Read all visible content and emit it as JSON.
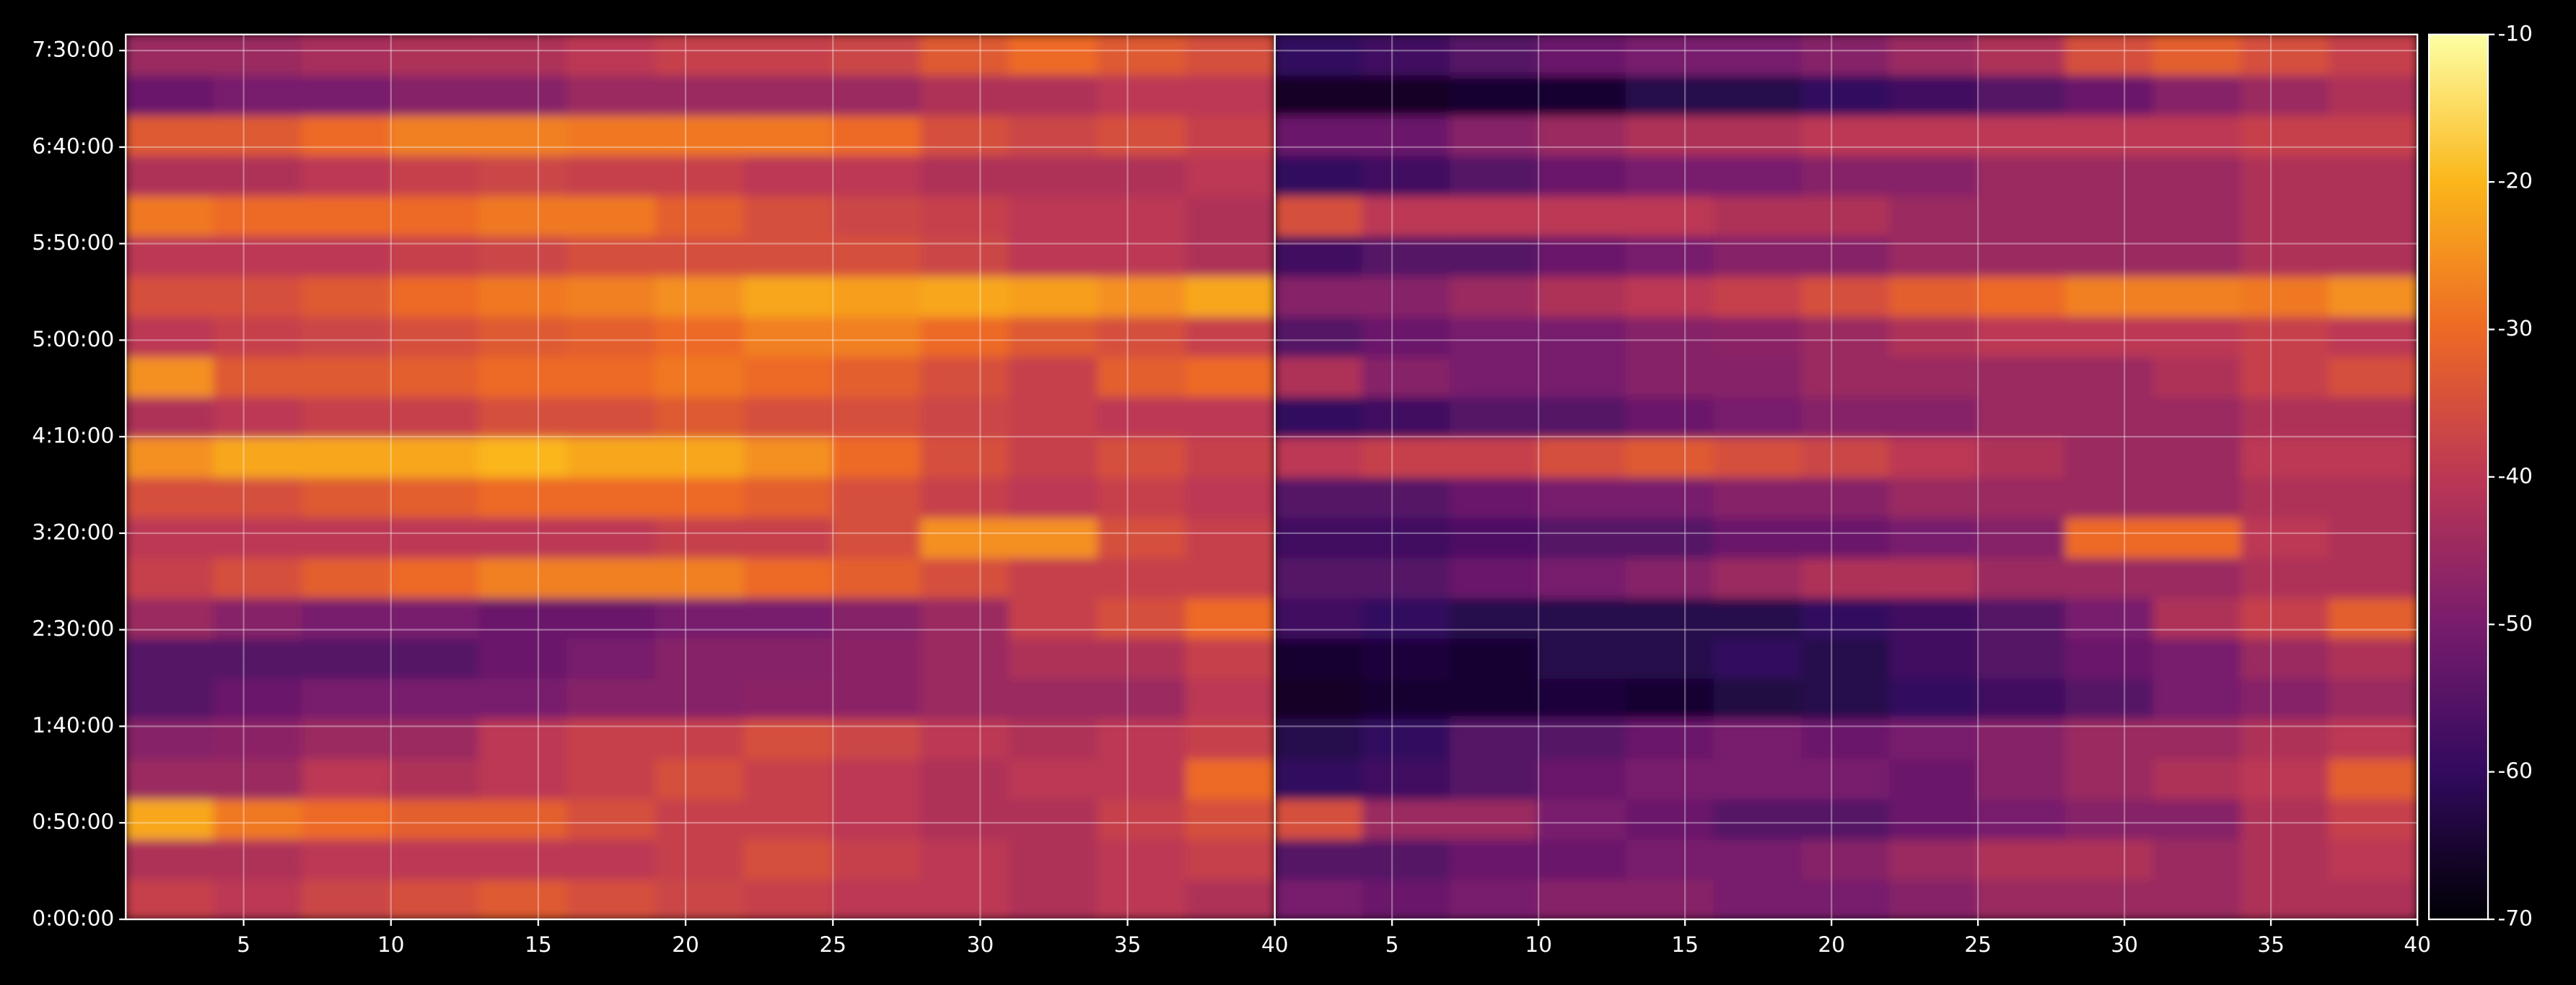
{
  "chart_data": [
    {
      "type": "heatmap",
      "x_bins": [
        1,
        4,
        7,
        10,
        13,
        16,
        19,
        22,
        25,
        28,
        31,
        34,
        37,
        40
      ],
      "y_bins": [
        0,
        1250,
        2500,
        3750,
        5000,
        6250,
        7500,
        8750,
        10000,
        11250,
        12500,
        13750,
        15000,
        16250,
        17500,
        18750,
        20000,
        21250,
        22500,
        23750,
        25000,
        26250,
        27500
      ],
      "xlim": [
        1,
        40
      ],
      "xticks": [
        5,
        10,
        15,
        20,
        25,
        30,
        35,
        40
      ],
      "ylim": [
        0,
        27500
      ],
      "yticks": [
        {
          "value": 0,
          "label": "0:00:00"
        },
        {
          "value": 3000,
          "label": "0:50:00"
        },
        {
          "value": 6000,
          "label": "1:40:00"
        },
        {
          "value": 9000,
          "label": "2:30:00"
        },
        {
          "value": 12000,
          "label": "3:20:00"
        },
        {
          "value": 15000,
          "label": "4:10:00"
        },
        {
          "value": 18000,
          "label": "5:00:00"
        },
        {
          "value": 21000,
          "label": "5:50:00"
        },
        {
          "value": 24000,
          "label": "6:40:00"
        },
        {
          "value": 27000,
          "label": "7:30:00"
        }
      ],
      "grid": true,
      "values": [
        [
          -38,
          -40,
          -37,
          -35,
          -33,
          -35,
          -37,
          -38,
          -40,
          -40,
          -42,
          -40,
          -42
        ],
        [
          -42,
          -42,
          -40,
          -40,
          -40,
          -40,
          -38,
          -35,
          -38,
          -40,
          -42,
          -40,
          -38
        ],
        [
          -22,
          -28,
          -30,
          -32,
          -32,
          -35,
          -38,
          -38,
          -40,
          -42,
          -42,
          -38,
          -35
        ],
        [
          -45,
          -45,
          -40,
          -42,
          -40,
          -38,
          -35,
          -38,
          -40,
          -42,
          -40,
          -40,
          -30
        ],
        [
          -48,
          -47,
          -45,
          -45,
          -40,
          -38,
          -38,
          -35,
          -37,
          -40,
          -42,
          -40,
          -38
        ],
        [
          -55,
          -52,
          -50,
          -50,
          -50,
          -48,
          -48,
          -47,
          -47,
          -45,
          -45,
          -45,
          -40
        ],
        [
          -55,
          -55,
          -55,
          -55,
          -52,
          -50,
          -48,
          -48,
          -47,
          -45,
          -42,
          -42,
          -38
        ],
        [
          -45,
          -48,
          -50,
          -50,
          -52,
          -52,
          -50,
          -50,
          -48,
          -45,
          -38,
          -35,
          -30
        ],
        [
          -38,
          -35,
          -32,
          -30,
          -27,
          -27,
          -27,
          -30,
          -32,
          -35,
          -38,
          -38,
          -38
        ],
        [
          -40,
          -40,
          -40,
          -40,
          -40,
          -40,
          -38,
          -38,
          -35,
          -25,
          -25,
          -35,
          -38
        ],
        [
          -35,
          -35,
          -33,
          -32,
          -30,
          -30,
          -30,
          -32,
          -35,
          -38,
          -40,
          -38,
          -40
        ],
        [
          -25,
          -22,
          -22,
          -22,
          -20,
          -22,
          -22,
          -25,
          -30,
          -35,
          -38,
          -35,
          -38
        ],
        [
          -42,
          -40,
          -38,
          -38,
          -35,
          -35,
          -33,
          -35,
          -35,
          -37,
          -38,
          -40,
          -40
        ],
        [
          -25,
          -33,
          -33,
          -32,
          -30,
          -30,
          -28,
          -30,
          -32,
          -35,
          -38,
          -32,
          -30
        ],
        [
          -40,
          -38,
          -37,
          -35,
          -33,
          -32,
          -30,
          -27,
          -27,
          -30,
          -33,
          -35,
          -38
        ],
        [
          -35,
          -35,
          -33,
          -30,
          -28,
          -27,
          -25,
          -22,
          -23,
          -22,
          -23,
          -25,
          -22
        ],
        [
          -40,
          -40,
          -40,
          -38,
          -37,
          -35,
          -35,
          -35,
          -35,
          -37,
          -40,
          -40,
          -42
        ],
        [
          -28,
          -30,
          -30,
          -30,
          -28,
          -28,
          -32,
          -35,
          -37,
          -38,
          -40,
          -40,
          -42
        ],
        [
          -42,
          -42,
          -40,
          -38,
          -37,
          -38,
          -38,
          -40,
          -40,
          -42,
          -42,
          -42,
          -40
        ],
        [
          -33,
          -33,
          -30,
          -27,
          -27,
          -28,
          -28,
          -28,
          -30,
          -35,
          -37,
          -35,
          -38
        ],
        [
          -52,
          -50,
          -50,
          -48,
          -48,
          -45,
          -45,
          -45,
          -45,
          -42,
          -42,
          -40,
          -40
        ],
        [
          -45,
          -45,
          -43,
          -42,
          -42,
          -40,
          -38,
          -38,
          -37,
          -33,
          -30,
          -33,
          -35
        ]
      ]
    },
    {
      "type": "heatmap",
      "x_bins": [
        1,
        4,
        7,
        10,
        13,
        16,
        19,
        22,
        25,
        28,
        31,
        34,
        37,
        40
      ],
      "y_bins": [
        0,
        1250,
        2500,
        3750,
        5000,
        6250,
        7500,
        8750,
        10000,
        11250,
        12500,
        13750,
        15000,
        16250,
        17500,
        18750,
        20000,
        21250,
        22500,
        23750,
        25000,
        26250,
        27500
      ],
      "xlim": [
        1,
        40
      ],
      "xticks": [
        5,
        10,
        15,
        20,
        25,
        30,
        35,
        40
      ],
      "ylim": [
        0,
        27500
      ],
      "grid": true,
      "values": [
        [
          -50,
          -52,
          -50,
          -48,
          -48,
          -50,
          -50,
          -48,
          -45,
          -45,
          -45,
          -42,
          -42
        ],
        [
          -55,
          -55,
          -52,
          -52,
          -50,
          -50,
          -48,
          -45,
          -42,
          -42,
          -45,
          -42,
          -40
        ],
        [
          -35,
          -45,
          -45,
          -50,
          -52,
          -55,
          -55,
          -52,
          -50,
          -48,
          -48,
          -42,
          -38
        ],
        [
          -60,
          -58,
          -55,
          -52,
          -50,
          -50,
          -50,
          -52,
          -48,
          -45,
          -42,
          -40,
          -32
        ],
        [
          -62,
          -60,
          -55,
          -55,
          -52,
          -50,
          -52,
          -50,
          -48,
          -45,
          -45,
          -42,
          -40
        ],
        [
          -66,
          -65,
          -65,
          -64,
          -65,
          -63,
          -62,
          -60,
          -58,
          -55,
          -50,
          -48,
          -45
        ],
        [
          -65,
          -64,
          -65,
          -62,
          -62,
          -60,
          -62,
          -58,
          -55,
          -52,
          -50,
          -45,
          -42
        ],
        [
          -58,
          -60,
          -62,
          -62,
          -62,
          -62,
          -60,
          -58,
          -55,
          -50,
          -42,
          -38,
          -32
        ],
        [
          -55,
          -55,
          -52,
          -50,
          -48,
          -45,
          -42,
          -42,
          -45,
          -45,
          -45,
          -42,
          -42
        ],
        [
          -58,
          -58,
          -56,
          -55,
          -55,
          -52,
          -52,
          -50,
          -48,
          -30,
          -30,
          -40,
          -42
        ],
        [
          -55,
          -55,
          -52,
          -50,
          -50,
          -48,
          -48,
          -45,
          -45,
          -45,
          -45,
          -42,
          -42
        ],
        [
          -40,
          -38,
          -38,
          -35,
          -33,
          -35,
          -37,
          -40,
          -42,
          -45,
          -45,
          -40,
          -40
        ],
        [
          -60,
          -58,
          -55,
          -55,
          -52,
          -50,
          -48,
          -48,
          -45,
          -45,
          -45,
          -42,
          -42
        ],
        [
          -42,
          -48,
          -50,
          -50,
          -48,
          -48,
          -45,
          -45,
          -45,
          -45,
          -42,
          -38,
          -35
        ],
        [
          -55,
          -52,
          -50,
          -50,
          -48,
          -47,
          -45,
          -42,
          -40,
          -40,
          -40,
          -38,
          -40
        ],
        [
          -48,
          -48,
          -45,
          -42,
          -40,
          -38,
          -35,
          -32,
          -30,
          -27,
          -27,
          -28,
          -25
        ],
        [
          -58,
          -55,
          -55,
          -52,
          -50,
          -48,
          -48,
          -45,
          -45,
          -45,
          -45,
          -42,
          -42
        ],
        [
          -35,
          -40,
          -40,
          -40,
          -40,
          -42,
          -42,
          -45,
          -45,
          -45,
          -45,
          -42,
          -42
        ],
        [
          -60,
          -58,
          -55,
          -52,
          -50,
          -50,
          -48,
          -48,
          -45,
          -45,
          -45,
          -42,
          -42
        ],
        [
          -52,
          -52,
          -48,
          -45,
          -42,
          -42,
          -40,
          -40,
          -40,
          -40,
          -40,
          -38,
          -38
        ],
        [
          -66,
          -66,
          -65,
          -65,
          -62,
          -62,
          -60,
          -58,
          -55,
          -52,
          -48,
          -45,
          -42
        ],
        [
          -60,
          -58,
          -55,
          -52,
          -50,
          -50,
          -48,
          -45,
          -42,
          -35,
          -32,
          -35,
          -38
        ]
      ]
    }
  ],
  "colorbar": {
    "clim": [
      -70,
      -10
    ],
    "ticks": [
      -10,
      -20,
      -30,
      -40,
      -50,
      -60,
      -70
    ],
    "colormap": [
      "#000004",
      "#320a5e",
      "#781c6d",
      "#bc3754",
      "#ed6925",
      "#fbb61a",
      "#fcffa4"
    ]
  }
}
